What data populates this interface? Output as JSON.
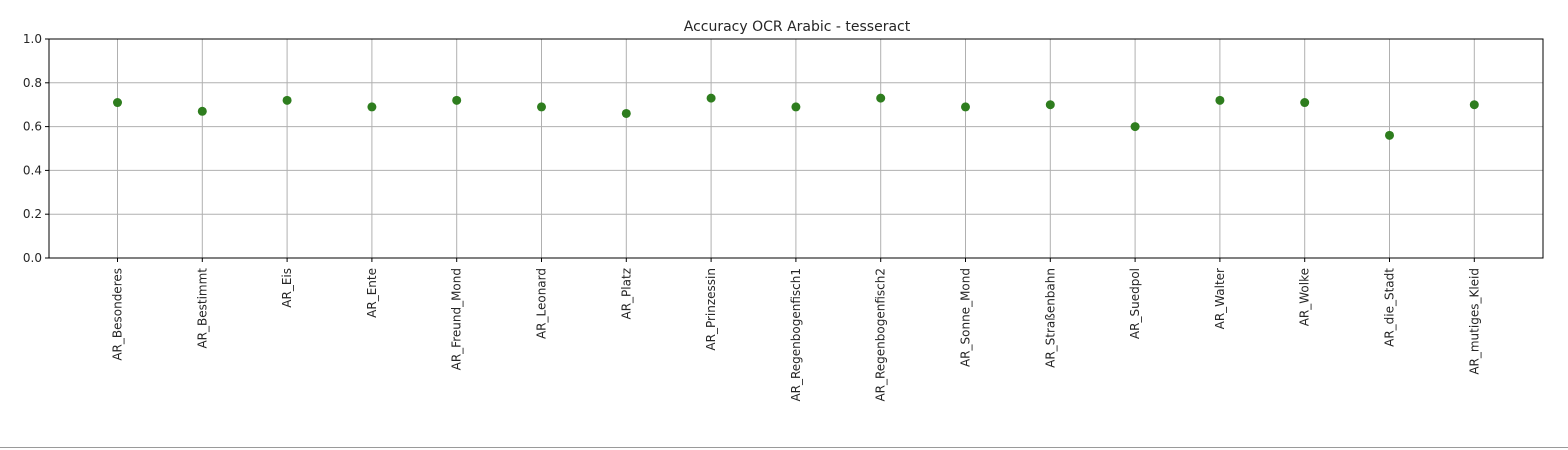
{
  "chart_data": {
    "type": "scatter",
    "title": "Accuracy OCR Arabic - tesseract",
    "xlabel": "",
    "ylabel": "",
    "categories": [
      "AR_Besonderes",
      "AR_Bestimmt",
      "AR_Eis",
      "AR_Ente",
      "AR_Freund_Mond",
      "AR_Leonard",
      "AR_Platz",
      "AR_Prinzessin",
      "AR_Regenbogenfisch1",
      "AR_Regenbogenfisch2",
      "AR_Sonne_Mond",
      "AR_Straßenbahn",
      "AR_Suedpol",
      "AR_Walter",
      "AR_Wolke",
      "AR_die_Stadt",
      "AR_mutiges_Kleid"
    ],
    "values": [
      0.71,
      0.67,
      0.72,
      0.69,
      0.72,
      0.69,
      0.66,
      0.73,
      0.69,
      0.73,
      0.69,
      0.7,
      0.6,
      0.72,
      0.71,
      0.56,
      0.7
    ],
    "ylim": [
      0.0,
      1.0
    ],
    "yticks": [
      "0.0",
      "0.2",
      "0.4",
      "0.6",
      "0.8",
      "1.0"
    ],
    "grid": true,
    "marker_color": "#2e7d1e"
  }
}
